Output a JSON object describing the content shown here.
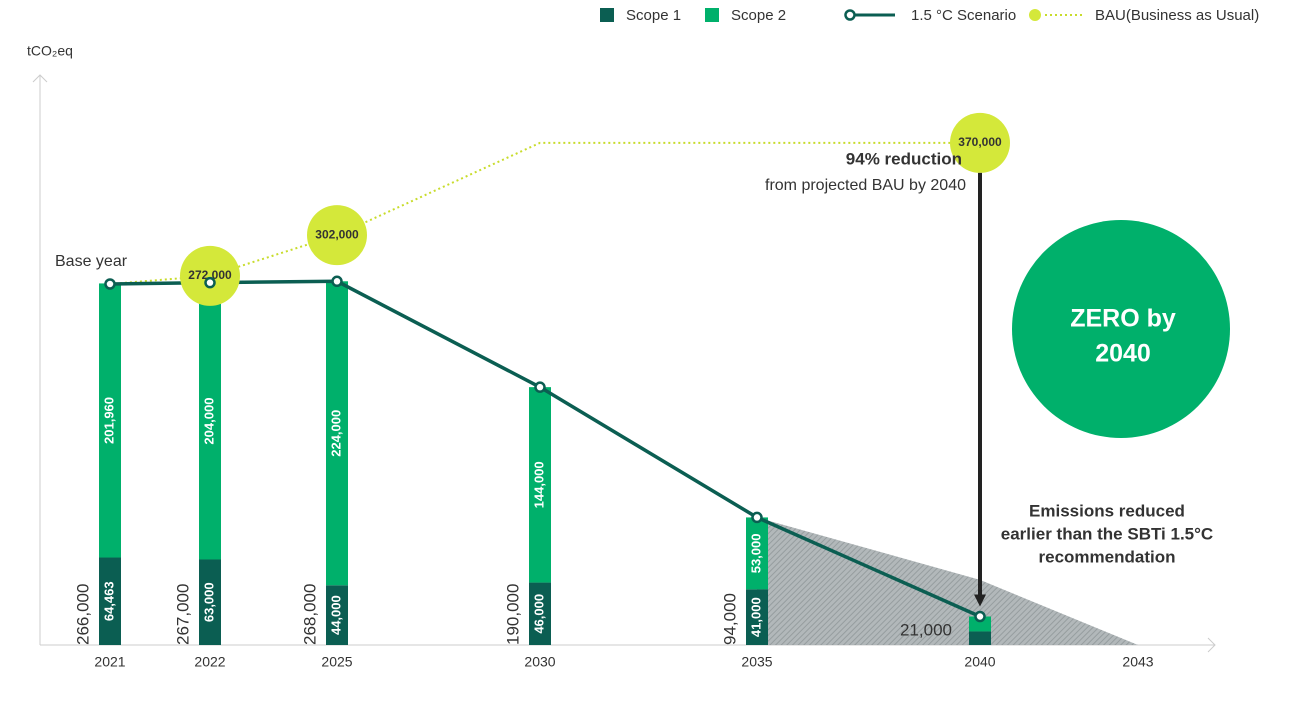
{
  "chart_data": {
    "type": "bar",
    "y_label": "tCO₂eq",
    "categories": [
      "2021",
      "2022",
      "2025",
      "2030",
      "2035",
      "2040",
      "2043"
    ],
    "ylim": [
      0,
      420000
    ],
    "series": [
      {
        "name": "Scope 1",
        "color": "#0b5e52",
        "values": [
          64463,
          63000,
          44000,
          46000,
          41000,
          10000,
          null
        ],
        "value_labels": [
          "64,463",
          "63,000",
          "44,000",
          "46,000",
          "41,000",
          null,
          null
        ]
      },
      {
        "name": "Scope 2",
        "color": "#00b06b",
        "values": [
          201960,
          204000,
          224000,
          144000,
          53000,
          11000,
          null
        ],
        "value_labels": [
          "201,960",
          "204,000",
          "224,000",
          "144,000",
          "53,000",
          null,
          null
        ]
      }
    ],
    "lines": [
      {
        "name": "1.5 °C Scenario",
        "color": "#0b5e52",
        "values": [
          266000,
          267000,
          268000,
          190000,
          94000,
          21000,
          null
        ],
        "value_labels": [
          "266,000",
          "267,000",
          "268,000",
          "190,000",
          "94,000",
          "21,000",
          null
        ]
      },
      {
        "name": "BAU(Business as Usual)",
        "color": "#d4e83a",
        "values": [
          266000,
          272000,
          302000,
          370000,
          null,
          370000,
          null
        ],
        "value_labels": [
          null,
          "272,000",
          "302,000",
          null,
          null,
          "370,000",
          null
        ]
      }
    ],
    "recommendation_values": [
      null,
      null,
      null,
      null,
      94000,
      48000,
      0
    ],
    "annotations": {
      "base_year": "Base year",
      "reduction_title": "94% reduction",
      "reduction_text": "from projected BAU by 2040",
      "zero": [
        "ZERO by",
        "2040"
      ],
      "sbti": [
        "Emissions reduced",
        "earlier than the SBTi 1.5°C",
        "recommendation"
      ]
    }
  }
}
